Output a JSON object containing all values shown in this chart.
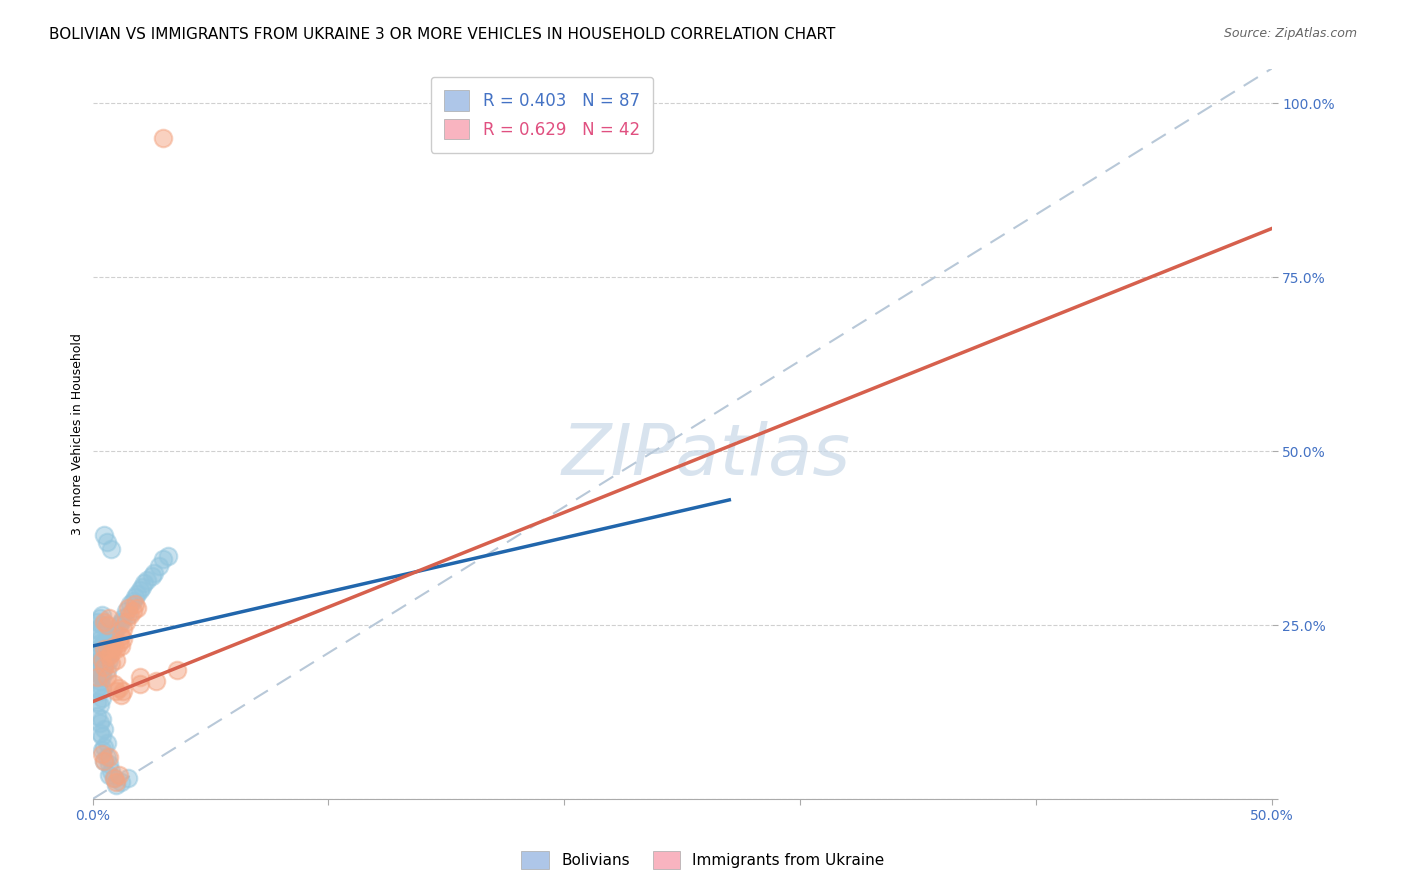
{
  "title": "BOLIVIAN VS IMMIGRANTS FROM UKRAINE 3 OR MORE VEHICLES IN HOUSEHOLD CORRELATION CHART",
  "source": "Source: ZipAtlas.com",
  "ylabel": "3 or more Vehicles in Household",
  "xlim": [
    0.0,
    0.5
  ],
  "ylim": [
    0.0,
    1.05
  ],
  "xticks": [
    0.0,
    0.1,
    0.2,
    0.3,
    0.4,
    0.5
  ],
  "xticklabels": [
    "0.0%",
    "",
    "",
    "",
    "",
    "50.0%"
  ],
  "ytick_positions": [
    0.0,
    0.25,
    0.5,
    0.75,
    1.0
  ],
  "yticklabels": [
    "",
    "25.0%",
    "50.0%",
    "75.0%",
    "100.0%"
  ],
  "watermark": "ZIPatlas",
  "blue_color": "#92c5de",
  "pink_color": "#f4a582",
  "blue_line_color": "#2166ac",
  "pink_line_color": "#d6604d",
  "diagonal_color": "#b8c8d8",
  "background_color": "#ffffff",
  "grid_color": "#d0d0d0",
  "legend_blue_color": "#aec6e8",
  "legend_pink_color": "#f9b4c0",
  "title_fontsize": 11,
  "axis_label_fontsize": 9,
  "tick_fontsize": 10,
  "legend_fontsize": 12,
  "watermark_fontsize": 52,
  "source_fontsize": 9,
  "blue_line": [
    [
      0.0,
      0.22
    ],
    [
      0.27,
      0.43
    ]
  ],
  "pink_line": [
    [
      0.0,
      0.14
    ],
    [
      0.5,
      0.82
    ]
  ],
  "diagonal_line": [
    [
      0.0,
      0.0
    ],
    [
      0.5,
      1.05
    ]
  ],
  "blue_scatter": [
    [
      0.002,
      0.215
    ],
    [
      0.003,
      0.23
    ],
    [
      0.004,
      0.22
    ],
    [
      0.005,
      0.215
    ],
    [
      0.003,
      0.21
    ],
    [
      0.004,
      0.205
    ],
    [
      0.005,
      0.2
    ],
    [
      0.006,
      0.215
    ],
    [
      0.003,
      0.195
    ],
    [
      0.004,
      0.19
    ],
    [
      0.005,
      0.225
    ],
    [
      0.006,
      0.205
    ],
    [
      0.003,
      0.2
    ],
    [
      0.004,
      0.215
    ],
    [
      0.002,
      0.185
    ],
    [
      0.003,
      0.18
    ],
    [
      0.004,
      0.175
    ],
    [
      0.005,
      0.195
    ],
    [
      0.006,
      0.185
    ],
    [
      0.007,
      0.2
    ],
    [
      0.004,
      0.22
    ],
    [
      0.005,
      0.21
    ],
    [
      0.003,
      0.225
    ],
    [
      0.004,
      0.195
    ],
    [
      0.006,
      0.23
    ],
    [
      0.005,
      0.19
    ],
    [
      0.007,
      0.235
    ],
    [
      0.008,
      0.225
    ],
    [
      0.003,
      0.17
    ],
    [
      0.004,
      0.18
    ],
    [
      0.005,
      0.205
    ],
    [
      0.006,
      0.21
    ],
    [
      0.007,
      0.22
    ],
    [
      0.008,
      0.215
    ],
    [
      0.009,
      0.24
    ],
    [
      0.01,
      0.245
    ],
    [
      0.003,
      0.24
    ],
    [
      0.002,
      0.245
    ],
    [
      0.004,
      0.25
    ],
    [
      0.006,
      0.37
    ],
    [
      0.005,
      0.38
    ],
    [
      0.008,
      0.36
    ],
    [
      0.002,
      0.16
    ],
    [
      0.003,
      0.155
    ],
    [
      0.004,
      0.16
    ],
    [
      0.002,
      0.14
    ],
    [
      0.003,
      0.135
    ],
    [
      0.004,
      0.145
    ],
    [
      0.002,
      0.12
    ],
    [
      0.003,
      0.11
    ],
    [
      0.004,
      0.115
    ],
    [
      0.003,
      0.095
    ],
    [
      0.004,
      0.09
    ],
    [
      0.005,
      0.1
    ],
    [
      0.004,
      0.07
    ],
    [
      0.005,
      0.075
    ],
    [
      0.006,
      0.08
    ],
    [
      0.005,
      0.055
    ],
    [
      0.006,
      0.06
    ],
    [
      0.007,
      0.05
    ],
    [
      0.007,
      0.035
    ],
    [
      0.008,
      0.04
    ],
    [
      0.009,
      0.03
    ],
    [
      0.01,
      0.02
    ],
    [
      0.012,
      0.025
    ],
    [
      0.015,
      0.03
    ],
    [
      0.011,
      0.25
    ],
    [
      0.013,
      0.26
    ],
    [
      0.015,
      0.265
    ],
    [
      0.012,
      0.255
    ],
    [
      0.014,
      0.27
    ],
    [
      0.016,
      0.28
    ],
    [
      0.018,
      0.29
    ],
    [
      0.02,
      0.3
    ],
    [
      0.022,
      0.31
    ],
    [
      0.025,
      0.32
    ],
    [
      0.028,
      0.335
    ],
    [
      0.017,
      0.285
    ],
    [
      0.019,
      0.295
    ],
    [
      0.021,
      0.305
    ],
    [
      0.023,
      0.315
    ],
    [
      0.026,
      0.325
    ],
    [
      0.03,
      0.345
    ],
    [
      0.032,
      0.35
    ],
    [
      0.002,
      0.255
    ],
    [
      0.003,
      0.26
    ],
    [
      0.004,
      0.265
    ],
    [
      0.009,
      0.245
    ]
  ],
  "pink_scatter": [
    [
      0.002,
      0.175
    ],
    [
      0.004,
      0.2
    ],
    [
      0.005,
      0.215
    ],
    [
      0.005,
      0.19
    ],
    [
      0.006,
      0.215
    ],
    [
      0.007,
      0.205
    ],
    [
      0.006,
      0.175
    ],
    [
      0.008,
      0.21
    ],
    [
      0.008,
      0.195
    ],
    [
      0.009,
      0.22
    ],
    [
      0.01,
      0.215
    ],
    [
      0.01,
      0.2
    ],
    [
      0.011,
      0.225
    ],
    [
      0.012,
      0.22
    ],
    [
      0.012,
      0.235
    ],
    [
      0.013,
      0.245
    ],
    [
      0.014,
      0.255
    ],
    [
      0.013,
      0.23
    ],
    [
      0.005,
      0.255
    ],
    [
      0.006,
      0.25
    ],
    [
      0.007,
      0.26
    ],
    [
      0.015,
      0.275
    ],
    [
      0.016,
      0.265
    ],
    [
      0.017,
      0.27
    ],
    [
      0.018,
      0.28
    ],
    [
      0.019,
      0.275
    ],
    [
      0.02,
      0.165
    ],
    [
      0.004,
      0.065
    ],
    [
      0.005,
      0.055
    ],
    [
      0.007,
      0.06
    ],
    [
      0.009,
      0.03
    ],
    [
      0.01,
      0.025
    ],
    [
      0.011,
      0.035
    ],
    [
      0.009,
      0.165
    ],
    [
      0.011,
      0.16
    ],
    [
      0.013,
      0.155
    ],
    [
      0.012,
      0.15
    ],
    [
      0.01,
      0.155
    ],
    [
      0.02,
      0.175
    ],
    [
      0.027,
      0.17
    ],
    [
      0.036,
      0.185
    ],
    [
      0.03,
      0.95
    ]
  ]
}
